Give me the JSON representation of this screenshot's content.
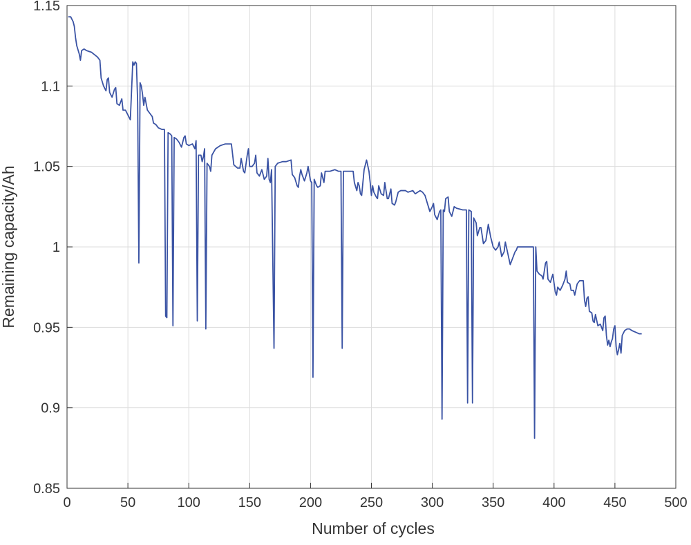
{
  "chart_data": {
    "type": "line",
    "xlabel": "Number of cycles",
    "ylabel": "Remaining capacity/Ah",
    "xlim": [
      0,
      500
    ],
    "xticks": [
      0,
      50,
      100,
      150,
      200,
      250,
      300,
      350,
      400,
      450,
      500
    ],
    "ylim": [
      0.85,
      1.15
    ],
    "yticks": [
      0.85,
      0.9,
      0.95,
      1,
      1.05,
      1.1,
      1.15
    ],
    "grid": true,
    "series": [
      {
        "color": "#3a53a4",
        "x": [
          1,
          3,
          5,
          6,
          7,
          8,
          10,
          11,
          12,
          14,
          16,
          20,
          25,
          27,
          28,
          30,
          32,
          33,
          34,
          35,
          37,
          39,
          40,
          41,
          43,
          45,
          46,
          48,
          50,
          52,
          53,
          54,
          55,
          56,
          57,
          58,
          59,
          60,
          61,
          62,
          63,
          64,
          66,
          68,
          70,
          71,
          73,
          75,
          78,
          80,
          81,
          82,
          83,
          85,
          86,
          87,
          88,
          90,
          92,
          94,
          96,
          97,
          98,
          100,
          103,
          105,
          106,
          107,
          108,
          110,
          111,
          112,
          113,
          114,
          115,
          117,
          118,
          119,
          122,
          126,
          130,
          135,
          137,
          140,
          142,
          143,
          145,
          146,
          148,
          149,
          150,
          152,
          154,
          155,
          156,
          158,
          160,
          162,
          164,
          165,
          166,
          167,
          168,
          170,
          171,
          173,
          177,
          180,
          184,
          185,
          187,
          189,
          190,
          191,
          192,
          193,
          195,
          197,
          198,
          200,
          201,
          202,
          203,
          205,
          206,
          208,
          209,
          211,
          212,
          216,
          220,
          223,
          225,
          226,
          227,
          230,
          235,
          236,
          238,
          239,
          240,
          241,
          242,
          244,
          246,
          248,
          249,
          250,
          251,
          252,
          254,
          255,
          256,
          258,
          260,
          261,
          263,
          264,
          266,
          267,
          269,
          270,
          272,
          274,
          278,
          280,
          284,
          286,
          288,
          290,
          292,
          294,
          296,
          298,
          300,
          301,
          302,
          304,
          306,
          307,
          308,
          309,
          310,
          311,
          313,
          314,
          316,
          318,
          320,
          325,
          328,
          329,
          330,
          332,
          333,
          334,
          336,
          337,
          339,
          340,
          342,
          344,
          346,
          348,
          350,
          352,
          354,
          355,
          357,
          359,
          360,
          362,
          364,
          366,
          368,
          369,
          370,
          375,
          380,
          383,
          384,
          385,
          386,
          388,
          390,
          391,
          393,
          394,
          395,
          397,
          399,
          401,
          402,
          403,
          405,
          407,
          409,
          410,
          411,
          413,
          414,
          416,
          417,
          419,
          421,
          424,
          425,
          426,
          427,
          428,
          429,
          431,
          432,
          433,
          434,
          436,
          438,
          440,
          441,
          442,
          443,
          444,
          445,
          446,
          447,
          448,
          449,
          450,
          451,
          452,
          453,
          454,
          455,
          456,
          458,
          460,
          462,
          464,
          467,
          470,
          472
        ],
        "values": [
          1.143,
          1.143,
          1.14,
          1.137,
          1.13,
          1.125,
          1.12,
          1.116,
          1.122,
          1.123,
          1.122,
          1.121,
          1.118,
          1.116,
          1.105,
          1.1,
          1.097,
          1.104,
          1.105,
          1.096,
          1.093,
          1.098,
          1.099,
          1.089,
          1.088,
          1.092,
          1.085,
          1.085,
          1.082,
          1.079,
          1.097,
          1.115,
          1.113,
          1.115,
          1.114,
          1.09,
          0.99,
          1.102,
          1.1,
          1.095,
          1.088,
          1.093,
          1.085,
          1.083,
          1.081,
          1.077,
          1.076,
          1.074,
          1.073,
          1.073,
          0.957,
          0.956,
          1.071,
          1.07,
          1.069,
          0.951,
          1.068,
          1.067,
          1.065,
          1.062,
          1.068,
          1.069,
          1.064,
          1.063,
          1.064,
          1.061,
          1.066,
          0.954,
          1.057,
          1.057,
          1.053,
          1.056,
          1.061,
          0.949,
          1.052,
          1.05,
          1.047,
          1.057,
          1.061,
          1.063,
          1.064,
          1.064,
          1.051,
          1.049,
          1.049,
          1.055,
          1.047,
          1.046,
          1.057,
          1.061,
          1.05,
          1.05,
          1.052,
          1.057,
          1.046,
          1.044,
          1.048,
          1.042,
          1.044,
          1.055,
          1.042,
          1.04,
          1.048,
          0.937,
          1.05,
          1.052,
          1.053,
          1.053,
          1.054,
          1.045,
          1.043,
          1.038,
          1.037,
          1.044,
          1.048,
          1.045,
          1.041,
          1.046,
          1.05,
          1.041,
          1.04,
          0.919,
          1.042,
          1.038,
          1.037,
          1.038,
          1.046,
          1.04,
          1.047,
          1.047,
          1.048,
          1.047,
          1.047,
          0.937,
          1.047,
          1.047,
          1.047,
          1.04,
          1.035,
          1.04,
          1.038,
          1.033,
          1.032,
          1.048,
          1.054,
          1.047,
          1.04,
          1.032,
          1.038,
          1.034,
          1.031,
          1.03,
          1.038,
          1.033,
          1.032,
          1.04,
          1.03,
          1.03,
          1.036,
          1.027,
          1.026,
          1.028,
          1.034,
          1.035,
          1.035,
          1.034,
          1.035,
          1.033,
          1.034,
          1.035,
          1.034,
          1.032,
          1.027,
          1.022,
          1.025,
          1.027,
          1.02,
          1.017,
          1.022,
          1.023,
          0.893,
          1.023,
          1.022,
          1.03,
          1.031,
          1.022,
          1.019,
          1.025,
          1.024,
          1.023,
          1.023,
          0.903,
          1.023,
          1.022,
          0.903,
          1.018,
          1.015,
          1.007,
          1.012,
          1.012,
          1.002,
          1.004,
          1.014,
          1.006,
          1.0,
          0.998,
          1.0,
          1.003,
          0.994,
          0.997,
          1.003,
          0.996,
          0.989,
          0.993,
          0.997,
          0.998,
          1.0,
          1.0,
          1.0,
          1.0,
          0.881,
          1.0,
          0.985,
          0.983,
          0.982,
          0.98,
          0.99,
          0.991,
          0.98,
          0.978,
          0.983,
          0.972,
          0.97,
          0.975,
          0.973,
          0.976,
          0.98,
          0.985,
          0.978,
          0.977,
          0.973,
          0.973,
          0.97,
          0.977,
          0.979,
          0.979,
          0.967,
          0.963,
          0.968,
          0.969,
          0.96,
          0.959,
          0.954,
          0.953,
          0.958,
          0.951,
          0.952,
          0.948,
          0.956,
          0.957,
          0.945,
          0.939,
          0.942,
          0.938,
          0.941,
          0.943,
          0.949,
          0.951,
          0.938,
          0.933,
          0.936,
          0.94,
          0.934,
          0.945,
          0.948,
          0.949,
          0.949,
          0.948,
          0.947,
          0.946,
          0.946
        ]
      }
    ]
  }
}
